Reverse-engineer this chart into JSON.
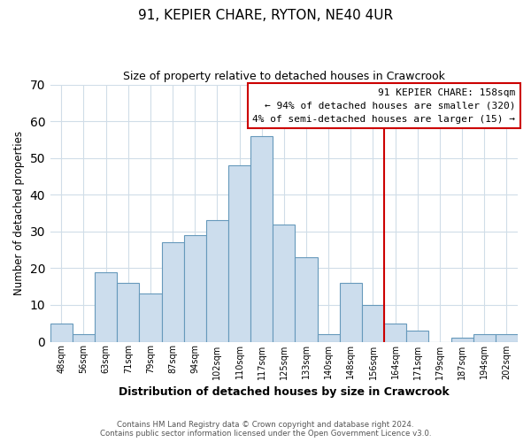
{
  "title": "91, KEPIER CHARE, RYTON, NE40 4UR",
  "subtitle": "Size of property relative to detached houses in Crawcrook",
  "xlabel": "Distribution of detached houses by size in Crawcrook",
  "ylabel": "Number of detached properties",
  "bar_labels": [
    "48sqm",
    "56sqm",
    "63sqm",
    "71sqm",
    "79sqm",
    "87sqm",
    "94sqm",
    "102sqm",
    "110sqm",
    "117sqm",
    "125sqm",
    "133sqm",
    "140sqm",
    "148sqm",
    "156sqm",
    "164sqm",
    "171sqm",
    "179sqm",
    "187sqm",
    "194sqm",
    "202sqm"
  ],
  "bar_values": [
    5,
    2,
    19,
    16,
    13,
    27,
    29,
    33,
    48,
    56,
    32,
    23,
    2,
    16,
    10,
    5,
    3,
    0,
    1,
    2,
    2
  ],
  "bar_color": "#ccdded",
  "bar_edge_color": "#6699bb",
  "ylim": [
    0,
    70
  ],
  "yticks": [
    0,
    10,
    20,
    30,
    40,
    50,
    60,
    70
  ],
  "vline_x_index": 14.5,
  "vline_color": "#cc0000",
  "annotation_title": "91 KEPIER CHARE: 158sqm",
  "annotation_line1": "← 94% of detached houses are smaller (320)",
  "annotation_line2": "4% of semi-detached houses are larger (15) →",
  "annotation_box_color": "#ffffff",
  "annotation_box_edge": "#cc0000",
  "footer_line1": "Contains HM Land Registry data © Crown copyright and database right 2024.",
  "footer_line2": "Contains public sector information licensed under the Open Government Licence v3.0.",
  "background_color": "#ffffff",
  "grid_color": "#d0dde8"
}
